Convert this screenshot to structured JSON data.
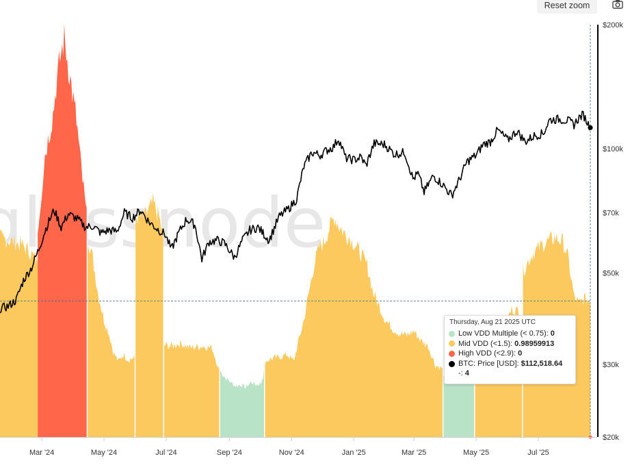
{
  "toolbar": {
    "reset_zoom_label": "Reset zoom",
    "camera_icon": "camera-icon"
  },
  "watermark": "glassnode",
  "colors": {
    "low": "#b9e3c6",
    "mid": "#fcc95f",
    "high": "#ff664a",
    "price": "#000000",
    "axis": "#000000",
    "crosshair": "#3a6e7a"
  },
  "tooltip": {
    "date": "Thursday, Aug 21 2025 UTC",
    "rows": [
      {
        "label": "Low VDD Multiple (< 0.75):",
        "value": "0",
        "color": "#b9e3c6"
      },
      {
        "label": "Mid VDD (<1.5):",
        "value": "0.98959913",
        "color": "#fcc95f"
      },
      {
        "label": "High VDD (<2.9):",
        "value": "0",
        "color": "#ff664a"
      },
      {
        "label": "BTC: Price [USD]:",
        "value": "$112,518.64",
        "color": "#000000"
      }
    ],
    "extra": {
      "label": "-:",
      "value": "4"
    }
  },
  "chart_data": {
    "type": "area",
    "x_ticks": [
      "Mar '24",
      "May '24",
      "Jul '24",
      "Sep '24",
      "Nov '24",
      "Jan '25",
      "Mar '25",
      "May '25",
      "Jul '25"
    ],
    "x_tick_dates": [
      "2024-03-01",
      "2024-05-01",
      "2024-07-01",
      "2024-09-01",
      "2024-11-01",
      "2025-01-01",
      "2025-03-01",
      "2025-05-01",
      "2025-07-01"
    ],
    "x_range": [
      "2024-01-20",
      "2025-08-21"
    ],
    "y_right_ticks": [
      "$200k",
      "$100k",
      "$70k",
      "$50k",
      "$30k",
      "$20k"
    ],
    "y_right_values": [
      200000,
      100000,
      70000,
      50000,
      30000,
      20000
    ],
    "y_right_scale": "log",
    "y_right_range": [
      20000,
      200000
    ],
    "y_left_range": [
      0,
      3.0
    ],
    "crosshair": {
      "date": "2025-08-21",
      "vdd": 0.99,
      "price": 112518.64
    },
    "series": [
      {
        "name": "Low VDD Multiple (< 0.75)",
        "style": "area",
        "color": "#b9e3c6",
        "segments": [
          {
            "x": [
              "2024-08-23",
              "2024-08-28",
              "2024-09-02",
              "2024-09-07",
              "2024-09-12",
              "2024-09-17",
              "2024-09-22",
              "2024-09-27",
              "2024-10-02",
              "2024-10-05"
            ],
            "y": [
              0.48,
              0.43,
              0.4,
              0.37,
              0.38,
              0.36,
              0.4,
              0.38,
              0.39,
              0.47
            ]
          },
          {
            "x": [
              "2025-03-30",
              "2025-04-05",
              "2025-04-10",
              "2025-04-15",
              "2025-04-20",
              "2025-04-25",
              "2025-04-29"
            ],
            "y": [
              0.45,
              0.47,
              0.48,
              0.45,
              0.48,
              0.47,
              0.49
            ]
          }
        ]
      },
      {
        "name": "Mid VDD (<1.5)",
        "style": "area",
        "color": "#fcc95f",
        "segments": [
          {
            "x": [
              "2024-01-20",
              "2024-02-01",
              "2024-02-10",
              "2024-02-18",
              "2024-02-23",
              "2024-02-26"
            ],
            "y": [
              1.45,
              1.42,
              1.4,
              1.35,
              1.3,
              1.28
            ]
          },
          {
            "x": [
              "2024-04-15",
              "2024-04-20",
              "2024-04-25",
              "2024-05-01",
              "2024-05-06",
              "2024-05-10",
              "2024-05-15",
              "2024-05-20",
              "2024-05-25",
              "2024-05-31"
            ],
            "y": [
              1.45,
              1.3,
              1.05,
              0.85,
              0.75,
              0.62,
              0.55,
              0.6,
              0.56,
              0.58
            ]
          },
          {
            "x": [
              "2024-06-01",
              "2024-06-10",
              "2024-06-18",
              "2024-06-24",
              "2024-06-28"
            ],
            "y": [
              1.6,
              1.6,
              1.7,
              1.6,
              1.45
            ]
          },
          {
            "x": [
              "2024-06-29",
              "2024-07-05",
              "2024-07-15",
              "2024-07-25",
              "2024-08-05",
              "2024-08-15",
              "2024-08-22"
            ],
            "y": [
              0.67,
              0.66,
              0.68,
              0.65,
              0.66,
              0.65,
              0.48
            ]
          },
          {
            "x": [
              "2024-10-06",
              "2024-10-12",
              "2024-10-20",
              "2024-10-28",
              "2024-11-03",
              "2024-11-08",
              "2024-11-13",
              "2024-11-18",
              "2024-11-23",
              "2024-11-28",
              "2024-12-03",
              "2024-12-08",
              "2024-12-13",
              "2024-12-18",
              "2024-12-23",
              "2024-12-28",
              "2025-01-02",
              "2025-01-08",
              "2025-01-14",
              "2025-01-20",
              "2025-01-26",
              "2025-02-01",
              "2025-02-08",
              "2025-02-15",
              "2025-02-22",
              "2025-03-01",
              "2025-03-08",
              "2025-03-15",
              "2025-03-22",
              "2025-03-29"
            ],
            "y": [
              0.55,
              0.57,
              0.58,
              0.6,
              0.55,
              0.7,
              0.85,
              1.05,
              1.25,
              1.38,
              1.42,
              1.52,
              1.6,
              1.53,
              1.48,
              1.45,
              1.4,
              1.33,
              1.25,
              1.05,
              0.95,
              0.85,
              0.79,
              0.75,
              0.74,
              0.77,
              0.7,
              0.66,
              0.52,
              0.5
            ]
          },
          {
            "x": [
              "2025-04-30",
              "2025-05-06",
              "2025-05-12",
              "2025-05-18",
              "2025-05-24",
              "2025-05-30",
              "2025-06-05",
              "2025-06-11",
              "2025-06-15"
            ],
            "y": [
              0.7,
              0.74,
              0.75,
              0.74,
              0.8,
              0.83,
              0.93,
              0.92,
              0.88
            ]
          },
          {
            "x": [
              "2025-06-16",
              "2025-06-25",
              "2025-07-05",
              "2025-07-12",
              "2025-07-18",
              "2025-07-25",
              "2025-07-30",
              "2025-08-05",
              "2025-08-10",
              "2025-08-15",
              "2025-08-21"
            ],
            "y": [
              1.21,
              1.33,
              1.4,
              1.43,
              1.45,
              1.42,
              1.31,
              1.02,
              0.97,
              1.01,
              0.99
            ]
          }
        ]
      },
      {
        "name": "High VDD (<2.9)",
        "style": "area",
        "color": "#ff664a",
        "segments": [
          {
            "x": [
              "2024-02-26",
              "2024-03-01",
              "2024-03-04",
              "2024-03-08",
              "2024-03-12",
              "2024-03-15",
              "2024-03-19",
              "2024-03-23",
              "2024-03-27",
              "2024-03-31",
              "2024-04-04",
              "2024-04-08",
              "2024-04-11",
              "2024-04-14"
            ],
            "y": [
              1.5,
              1.8,
              2.05,
              2.2,
              2.35,
              2.55,
              2.75,
              2.9,
              2.7,
              2.5,
              2.3,
              2.0,
              1.8,
              1.6
            ]
          }
        ]
      },
      {
        "name": "BTC: Price [USD]",
        "style": "line",
        "color": "#000000",
        "x": [
          "2024-01-20",
          "2024-01-28",
          "2024-02-05",
          "2024-02-12",
          "2024-02-20",
          "2024-02-27",
          "2024-03-05",
          "2024-03-13",
          "2024-03-20",
          "2024-03-27",
          "2024-04-05",
          "2024-04-13",
          "2024-04-20",
          "2024-04-28",
          "2024-05-06",
          "2024-05-14",
          "2024-05-21",
          "2024-05-29",
          "2024-06-06",
          "2024-06-14",
          "2024-06-22",
          "2024-06-30",
          "2024-07-06",
          "2024-07-14",
          "2024-07-21",
          "2024-07-29",
          "2024-08-05",
          "2024-08-12",
          "2024-08-20",
          "2024-08-27",
          "2024-09-06",
          "2024-09-14",
          "2024-09-21",
          "2024-09-29",
          "2024-10-10",
          "2024-10-20",
          "2024-10-29",
          "2024-11-06",
          "2024-11-13",
          "2024-11-21",
          "2024-11-29",
          "2024-12-05",
          "2024-12-12",
          "2024-12-17",
          "2024-12-24",
          "2025-01-01",
          "2025-01-08",
          "2025-01-13",
          "2025-01-21",
          "2025-01-31",
          "2025-02-10",
          "2025-02-20",
          "2025-02-28",
          "2025-03-05",
          "2025-03-11",
          "2025-03-20",
          "2025-03-29",
          "2025-04-07",
          "2025-04-15",
          "2025-04-22",
          "2025-05-01",
          "2025-05-08",
          "2025-05-15",
          "2025-05-22",
          "2025-06-01",
          "2025-06-10",
          "2025-06-18",
          "2025-06-27",
          "2025-07-06",
          "2025-07-12",
          "2025-07-21",
          "2025-07-30",
          "2025-08-05",
          "2025-08-10",
          "2025-08-14",
          "2025-08-18",
          "2025-08-21"
        ],
        "y": [
          41000,
          41500,
          43000,
          48000,
          51500,
          57000,
          64000,
          71000,
          64500,
          69500,
          67500,
          64500,
          65000,
          62500,
          63500,
          63000,
          70000,
          68000,
          71000,
          66500,
          64000,
          62000,
          57000,
          63000,
          67500,
          65500,
          54000,
          59500,
          60000,
          59000,
          54500,
          60000,
          63500,
          64500,
          60000,
          68500,
          71500,
          75500,
          90500,
          98000,
          96500,
          99000,
          101000,
          106000,
          95000,
          94000,
          95500,
          91000,
          103000,
          102500,
          97000,
          98000,
          84500,
          87000,
          78500,
          86000,
          82000,
          77000,
          84500,
          93000,
          96500,
          102500,
          104000,
          111000,
          105000,
          110500,
          104000,
          107500,
          109000,
          117500,
          118000,
          117000,
          114500,
          119000,
          121000,
          116000,
          112518.64
        ]
      }
    ]
  }
}
